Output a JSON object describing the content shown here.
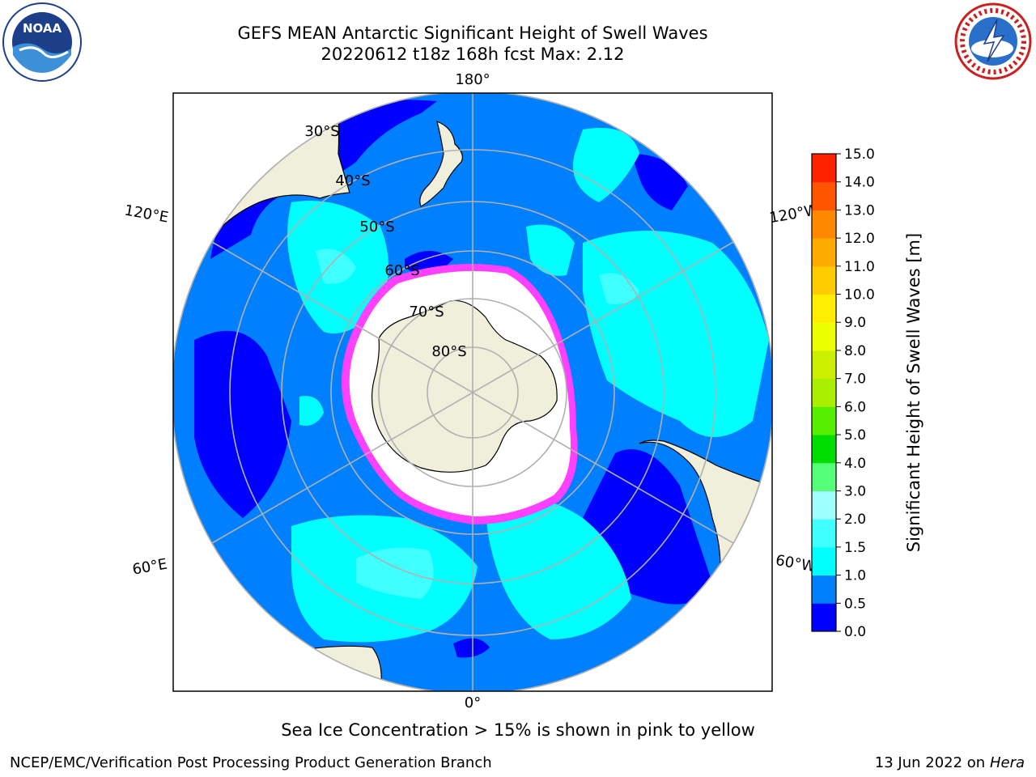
{
  "title": {
    "line1": "GEFS MEAN Antarctic Significant Height of Swell Waves",
    "line2": "20220612 t18z 168h fcst   Max: 2.12"
  },
  "logos": {
    "left": {
      "icon": "noaa-logo",
      "text": "NOAA"
    },
    "right": {
      "icon": "national-weather-service-logo"
    }
  },
  "map": {
    "projection": "south-polar-stereographic",
    "longitude_labels": {
      "top": "180°",
      "bottom": "0°",
      "left_upper": "120°E",
      "left_lower": "60°E",
      "right_upper": "120°W",
      "right_lower": "60°W"
    },
    "latitude_labels": [
      "30°S",
      "40°S",
      "50°S",
      "60°S",
      "70°S",
      "80°S"
    ],
    "colors": {
      "land": "#efefdc",
      "ocean_0_0p5": "#0000ff",
      "ocean_0p5_1": "#0080ff",
      "ocean_1_1p5": "#00ffff",
      "ocean_1p5_2": "#40ffff",
      "ice": "#ffffff",
      "ice_edge": "#ff40ff",
      "graticule": "#b0b0b0"
    }
  },
  "colorbar": {
    "label": "Significant Height of Swell Waves [m]",
    "ticks": [
      "0.0",
      "0.5",
      "1.0",
      "1.5",
      "2.0",
      "3.0",
      "4.0",
      "5.0",
      "6.0",
      "7.0",
      "8.0",
      "9.0",
      "10.0",
      "11.0",
      "12.0",
      "13.0",
      "14.0",
      "15.0"
    ],
    "colors": [
      "#0000ff",
      "#0080ff",
      "#00ffff",
      "#40ffff",
      "#a0ffff",
      "#55ff77",
      "#00dd00",
      "#55ee00",
      "#aaee00",
      "#ccee00",
      "#eeff00",
      "#ffee00",
      "#ffcc00",
      "#ffaa00",
      "#ff8800",
      "#ff5500",
      "#ff2200"
    ]
  },
  "annotation": "Sea Ice Concentration > 15% is shown in pink to yellow",
  "footer": {
    "left": "NCEP/EMC/Verification Post Processing Product Generation Branch",
    "right_date": "13 Jun 2022 on",
    "right_host": "Hera"
  }
}
